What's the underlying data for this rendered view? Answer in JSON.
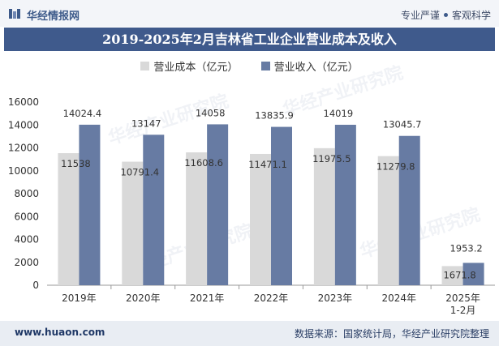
{
  "header": {
    "brand": "华经情报网",
    "slogan_left": "专业严谨",
    "slogan_right": "客观科学"
  },
  "footer": {
    "website": "www.huaon.com",
    "source": "数据来源：国家统计局，华经产业研究院整理"
  },
  "watermark": "华经产业研究院",
  "colors": {
    "cost": "#d9d9d9",
    "revenue": "#677ba3",
    "title_bg": "#3f5a8c"
  },
  "chart_data": {
    "type": "bar",
    "title": "2019-2025年2月吉林省工业企业营业成本及收入",
    "categories": [
      "2019年",
      "2020年",
      "2021年",
      "2022年",
      "2023年",
      "2024年",
      "2025年\n1-2月"
    ],
    "series": [
      {
        "name": "营业成本（亿元）",
        "values": [
          11538,
          10791.4,
          11608.6,
          11471.1,
          11975.5,
          11279.8,
          1671.8
        ],
        "labels": [
          "11538",
          "10791.4",
          "11608.6",
          "11471.1",
          "11975.5",
          "11279.8",
          "1671.8"
        ]
      },
      {
        "name": "营业收入（亿元）",
        "values": [
          14024.4,
          13147,
          14058,
          13835.9,
          14019,
          13045.7,
          1953.2
        ],
        "labels": [
          "14024.4",
          "13147",
          "14058",
          "13835.9",
          "14019",
          "13045.7",
          "1953.2"
        ]
      }
    ],
    "yticks": [
      "0",
      "2000",
      "4000",
      "6000",
      "8000",
      "10000",
      "12000",
      "14000",
      "16000"
    ],
    "ylim": [
      0,
      16000
    ],
    "legend_position": "top"
  }
}
